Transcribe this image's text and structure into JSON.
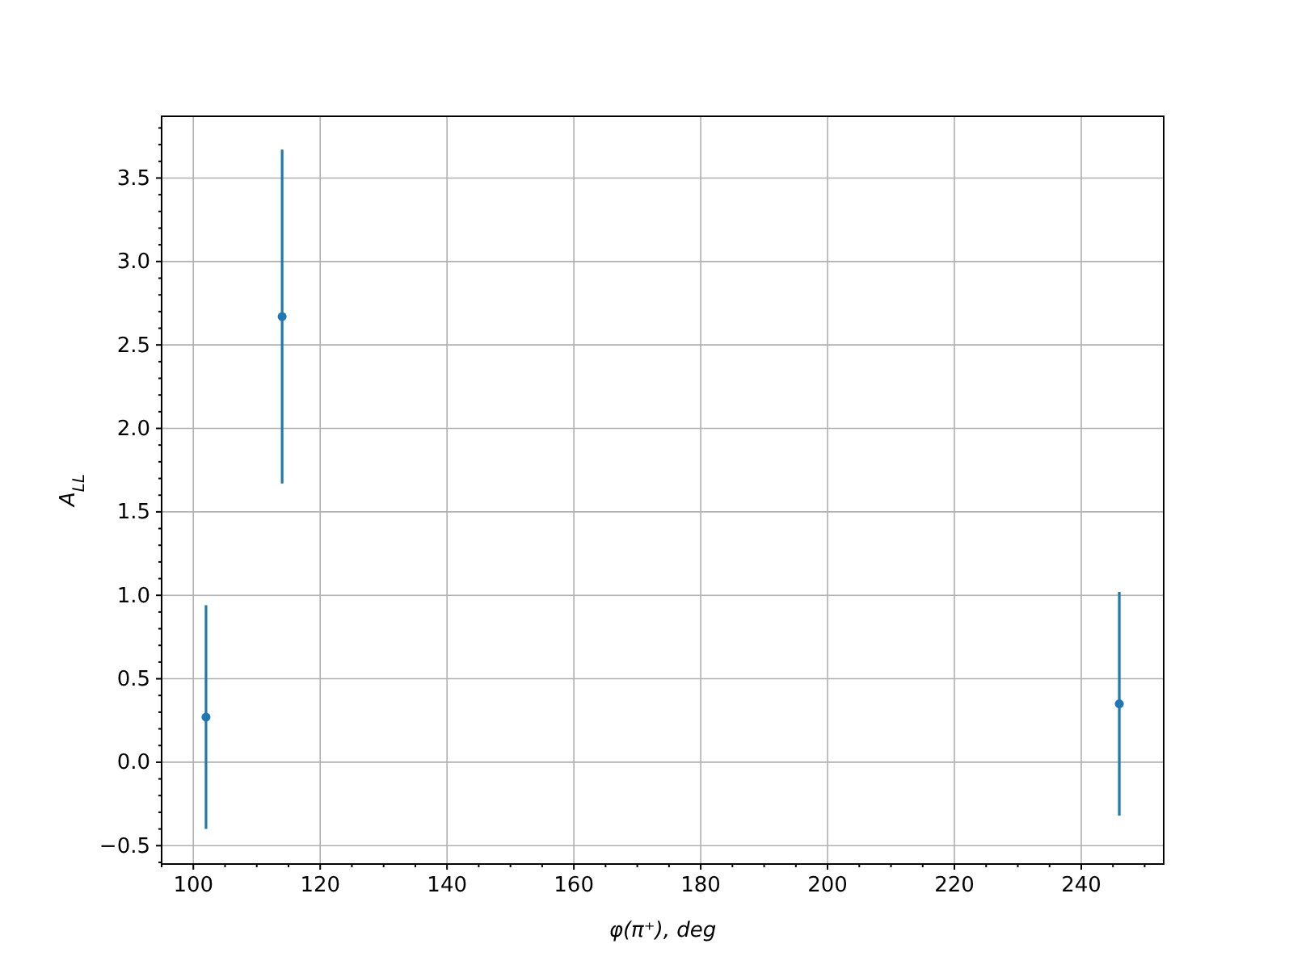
{
  "chart_data": {
    "type": "scatter",
    "xlabel": "φ(π⁺), deg",
    "ylabel": "A$_{LL}$",
    "x": [
      102,
      114,
      246
    ],
    "series": [
      {
        "color": "#1f77b4",
        "values": [
          0.27,
          2.67,
          0.35
        ],
        "errors": [
          0.67,
          1.0,
          0.67
        ]
      }
    ],
    "marker": "circle",
    "grid": true,
    "xlim": [
      95,
      253
    ],
    "ylim": [
      -0.61,
      3.87
    ],
    "xticks": [
      {
        "value": 95,
        "label": null
      },
      100,
      {
        "value": 105,
        "label": null
      },
      {
        "value": 110,
        "label": null
      },
      {
        "value": 115,
        "label": null
      },
      120,
      {
        "value": 125,
        "label": null
      },
      {
        "value": 130,
        "label": null
      },
      {
        "value": 135,
        "label": null
      },
      140,
      {
        "value": 145,
        "label": null
      },
      {
        "value": 150,
        "label": null
      },
      {
        "value": 155,
        "label": null
      },
      160,
      {
        "value": 165,
        "label": null
      },
      {
        "value": 170,
        "label": null
      },
      {
        "value": 175,
        "label": null
      },
      180,
      {
        "value": 185,
        "label": null
      },
      {
        "value": 190,
        "label": null
      },
      {
        "value": 195,
        "label": null
      },
      200,
      {
        "value": 205,
        "label": null
      },
      {
        "value": 210,
        "label": null
      },
      {
        "value": 215,
        "label": null
      },
      220,
      {
        "value": 225,
        "label": null
      },
      {
        "value": 230,
        "label": null
      },
      {
        "value": 235,
        "label": null
      },
      240,
      {
        "value": 245,
        "label": null
      },
      {
        "value": 250,
        "label": null
      }
    ],
    "yticks": [
      {
        "value": -0.6,
        "label": null
      },
      {
        "value": -0.5,
        "label": "−0.5"
      },
      {
        "value": -0.4,
        "label": null
      },
      {
        "value": -0.3,
        "label": null
      },
      {
        "value": -0.2,
        "label": null
      },
      {
        "value": -0.1,
        "label": null
      },
      {
        "value": 0,
        "label": "0.0"
      },
      {
        "value": 0.1,
        "label": null
      },
      {
        "value": 0.2,
        "label": null
      },
      {
        "value": 0.3,
        "label": null
      },
      {
        "value": 0.4,
        "label": null
      },
      0.5,
      {
        "value": 0.6,
        "label": null
      },
      {
        "value": 0.7,
        "label": null
      },
      {
        "value": 0.8,
        "label": null
      },
      {
        "value": 0.9,
        "label": null
      },
      {
        "value": 1,
        "label": "1.0"
      },
      {
        "value": 1.1,
        "label": null
      },
      {
        "value": 1.2,
        "label": null
      },
      {
        "value": 1.3,
        "label": null
      },
      {
        "value": 1.4,
        "label": null
      },
      1.5,
      {
        "value": 1.6,
        "label": null
      },
      {
        "value": 1.7,
        "label": null
      },
      {
        "value": 1.8,
        "label": null
      },
      {
        "value": 1.9,
        "label": null
      },
      {
        "value": 2,
        "label": "2.0"
      },
      {
        "value": 2.1,
        "label": null
      },
      {
        "value": 2.2,
        "label": null
      },
      {
        "value": 2.3,
        "label": null
      },
      {
        "value": 2.4,
        "label": null
      },
      2.5,
      {
        "value": 2.6,
        "label": null
      },
      {
        "value": 2.7,
        "label": null
      },
      {
        "value": 2.8,
        "label": null
      },
      {
        "value": 2.9,
        "label": null
      },
      {
        "value": 3,
        "label": "3.0"
      },
      {
        "value": 3.1,
        "label": null
      },
      {
        "value": 3.2,
        "label": null
      },
      {
        "value": 3.3,
        "label": null
      },
      {
        "value": 3.4,
        "label": null
      },
      3.5,
      {
        "value": 3.6,
        "label": null
      },
      {
        "value": 3.7,
        "label": null
      },
      {
        "value": 3.8,
        "label": null
      }
    ]
  }
}
